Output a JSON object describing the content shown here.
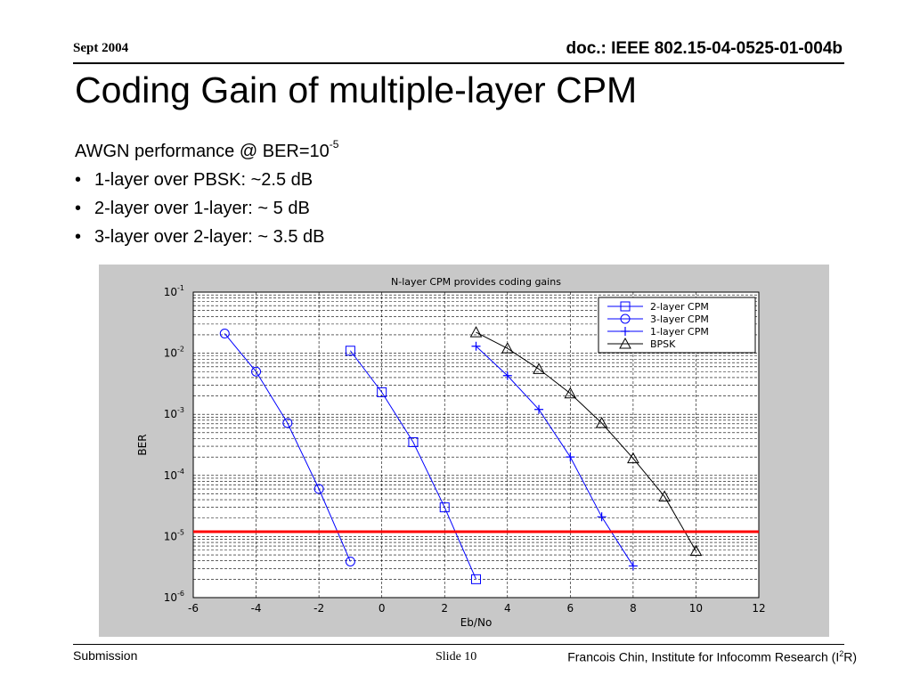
{
  "header": {
    "date": "Sept 2004",
    "doc": "doc.: IEEE 802.15-04-0525-01-004b"
  },
  "title": "Coding Gain of multiple-layer CPM",
  "intro": {
    "lead": "AWGN performance @ BER=10",
    "lead_exp": "-5",
    "bullets": [
      "1-layer over PBSK: ~2.5 dB",
      "2-layer over 1-layer: ~ 5 dB",
      "3-layer over 2-layer: ~ 3.5 dB"
    ]
  },
  "chart_data": {
    "type": "line",
    "title": "N-layer CPM provides coding gains",
    "xlabel": "Eb/No",
    "ylabel": "BER",
    "xlim": [
      -6,
      12
    ],
    "ylim": [
      1e-06,
      0.1
    ],
    "yscale": "log",
    "grid": true,
    "legend_position": "top-right",
    "xticks": [
      "-6",
      "-4",
      "-2",
      "0",
      "2",
      "4",
      "6",
      "8",
      "10",
      "12"
    ],
    "yticks": [
      {
        "base": "10",
        "exp": "-1",
        "value": 0.1
      },
      {
        "base": "10",
        "exp": "-2",
        "value": 0.01
      },
      {
        "base": "10",
        "exp": "-3",
        "value": 0.001
      },
      {
        "base": "10",
        "exp": "-4",
        "value": 0.0001
      },
      {
        "base": "10",
        "exp": "-5",
        "value": 1e-05
      },
      {
        "base": "10",
        "exp": "-6",
        "value": 1e-06
      }
    ],
    "series": [
      {
        "name": "2-layer CPM",
        "marker": "square",
        "color": "#0000ff",
        "x": [
          -1,
          0,
          1,
          2,
          3
        ],
        "y": [
          0.011,
          0.0023,
          0.00035,
          3e-05,
          2e-06
        ]
      },
      {
        "name": "3-layer CPM",
        "marker": "circle",
        "color": "#0000ff",
        "x": [
          -5,
          -4,
          -3,
          -2,
          -1
        ],
        "y": [
          0.021,
          0.005,
          0.00072,
          6e-05,
          3.9e-06
        ]
      },
      {
        "name": "1-layer CPM",
        "marker": "plus",
        "color": "#0000ff",
        "x": [
          3,
          4,
          5,
          6,
          7,
          8
        ],
        "y": [
          0.013,
          0.0043,
          0.0012,
          0.0002,
          2.1e-05,
          3.3e-06
        ]
      },
      {
        "name": "BPSK",
        "marker": "triangle",
        "color": "#000000",
        "x": [
          3,
          4,
          5,
          6,
          7,
          8,
          9,
          10
        ],
        "y": [
          0.022,
          0.012,
          0.0055,
          0.0022,
          0.00072,
          0.00019,
          4.5e-05,
          5.8e-06
        ]
      }
    ],
    "reference_line": {
      "y": 1.2e-05,
      "color": "#ff0000"
    }
  },
  "footer": {
    "left": "Submission",
    "slide": "Slide 10",
    "right": "Francois Chin, Institute for Infocomm Research (I",
    "right_sup": "2",
    "right_end": "R)"
  }
}
